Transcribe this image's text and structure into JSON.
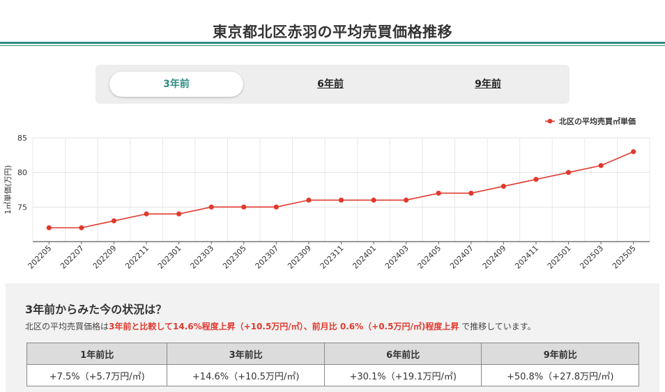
{
  "page": {
    "title": "東京都北区赤羽の平均売買価格推移"
  },
  "tabs": [
    {
      "label": "3年前",
      "active": true
    },
    {
      "label": "6年前",
      "active": false
    },
    {
      "label": "9年前",
      "active": false
    }
  ],
  "chart_data": {
    "type": "line",
    "title": "",
    "xlabel": "",
    "ylabel": "1㎡単価(万円)",
    "ylim": [
      70,
      85
    ],
    "yticks": [
      75,
      80,
      85
    ],
    "grid": true,
    "legend_position": "top-right",
    "series_color": "#e03a2e",
    "categories": [
      "202205",
      "202207",
      "202209",
      "202211",
      "202301",
      "202303",
      "202305",
      "202307",
      "202309",
      "202311",
      "202401",
      "202403",
      "202405",
      "202407",
      "202409",
      "202411",
      "202501",
      "202503",
      "202505"
    ],
    "series": [
      {
        "name": "北区の平均売買㎡単価",
        "values": [
          72,
          72,
          73,
          74,
          74,
          75,
          75,
          75,
          76,
          76,
          76,
          76,
          77,
          77,
          78,
          79,
          80,
          81,
          83
        ]
      }
    ]
  },
  "summary": {
    "heading": "3年前からみた今の状況は？",
    "text_prefix": "北区の平均売買価格は",
    "text_highlight": "3年前と比較して14.6%程度上昇（+10.5万円/㎡）、前月比 0.6%（+0.5万円/㎡)程度上昇",
    "text_suffix": " で推移しています。"
  },
  "comparison": {
    "headers": [
      "1年前比",
      "3年前比",
      "6年前比",
      "9年前比"
    ],
    "values": [
      "+7.5%（+5.7万円/㎡)",
      "+14.6%（+10.5万円/㎡)",
      "+30.1%（+19.1万円/㎡)",
      "+50.8%（+27.8万円/㎡)"
    ]
  }
}
